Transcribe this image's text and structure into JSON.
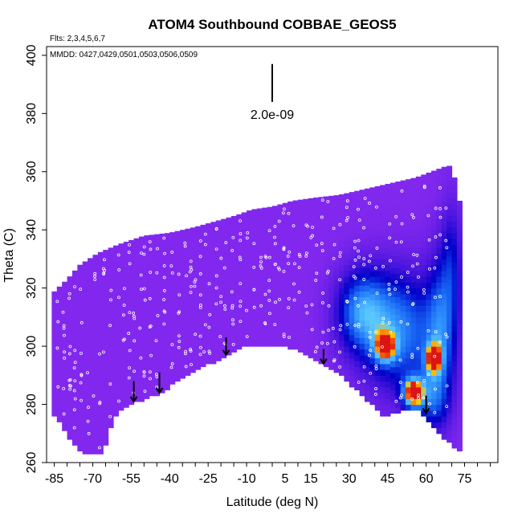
{
  "chart_data": {
    "type": "heatmap",
    "title": "ATOM4 Southbound COBBAE_GEOS5",
    "info_flights": "Flts: 2,3,4,5,6,7",
    "info_dates": "MMDD: 0427,0429,0501,0503,0506,0509",
    "xlabel": "Latitude (deg N)",
    "ylabel": "Theta (C)",
    "xlim": [
      -88,
      88
    ],
    "ylim": [
      260,
      403
    ],
    "x_ticks": [
      -85,
      -70,
      -55,
      -40,
      -25,
      -10,
      5,
      15,
      30,
      45,
      60,
      75
    ],
    "y_ticks": [
      260,
      280,
      300,
      320,
      340,
      360,
      380,
      400
    ],
    "scale_bar": {
      "label": "2.0e-09",
      "latitude": 0,
      "theta_top": 397,
      "theta_bottom": 384
    },
    "colors": {
      "background_field": "#8228ee",
      "low_field": "#0000c8",
      "mid_field": "#2f8bff",
      "high_field": "#ff8c00",
      "peak_field": "#e01010",
      "sample_points": "#ffffff",
      "terrain": "#ffffff"
    },
    "hotspots": [
      {
        "latitude": 44,
        "theta": 300,
        "level": "high"
      },
      {
        "latitude": 55,
        "theta": 284,
        "level": "peak"
      },
      {
        "latitude": 63,
        "theta": 296,
        "level": "high"
      }
    ],
    "arrows": [
      {
        "latitude": -54,
        "theta_top": 288,
        "theta_bottom": 281
      },
      {
        "latitude": -44,
        "theta_top": 291,
        "theta_bottom": 284
      },
      {
        "latitude": -18,
        "theta_top": 303,
        "theta_bottom": 297
      },
      {
        "latitude": 20,
        "theta_top": 299,
        "theta_bottom": 294
      },
      {
        "latitude": 60,
        "theta_top": 283,
        "theta_bottom": 277
      }
    ]
  }
}
